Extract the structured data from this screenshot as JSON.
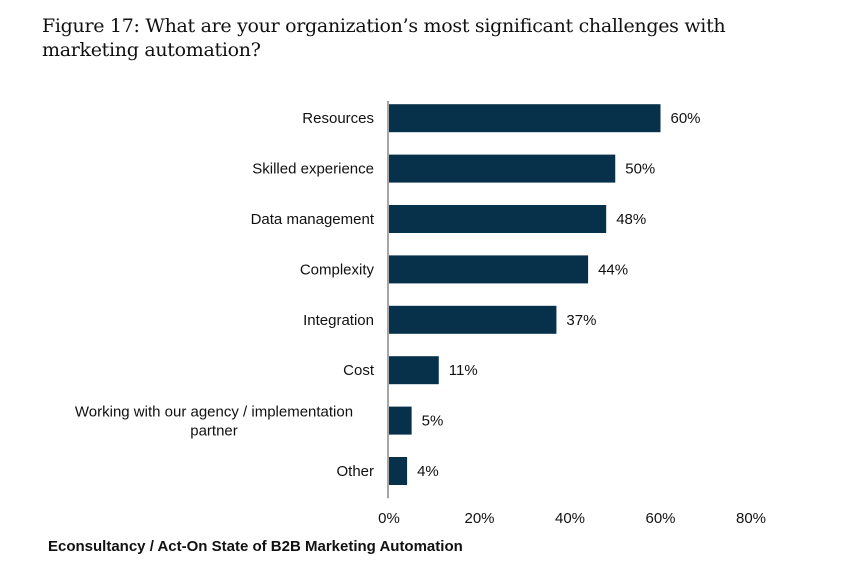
{
  "title": "Figure 17: What are your organization’s most significant challenges with marketing automation?",
  "source": "Econsultancy / Act-On State of B2B Marketing Automation",
  "colors": {
    "bar": "#07304a",
    "axis": "#888888"
  },
  "chart_data": {
    "type": "bar",
    "orientation": "horizontal",
    "title": "Figure 17: What are your organization’s most significant challenges with marketing automation?",
    "categories": [
      "Resources",
      "Skilled experience",
      "Data management",
      "Complexity",
      "Integration",
      "Cost",
      "Working with our agency / implementation partner",
      "Other"
    ],
    "category_lines": [
      [
        "Resources"
      ],
      [
        "Skilled experience"
      ],
      [
        "Data management"
      ],
      [
        "Complexity"
      ],
      [
        "Integration"
      ],
      [
        "Cost"
      ],
      [
        "Working with our agency / implementation",
        "partner"
      ],
      [
        "Other"
      ]
    ],
    "values": [
      60,
      50,
      48,
      44,
      37,
      11,
      5,
      4
    ],
    "value_labels": [
      "60%",
      "50%",
      "48%",
      "44%",
      "37%",
      "11%",
      "5%",
      "4%"
    ],
    "xlim": [
      0,
      80
    ],
    "xticks": [
      0,
      20,
      40,
      60,
      80
    ],
    "xtick_labels": [
      "0%",
      "20%",
      "40%",
      "60%",
      "80%"
    ],
    "xlabel": "",
    "ylabel": "",
    "grid": false,
    "legend": null
  }
}
